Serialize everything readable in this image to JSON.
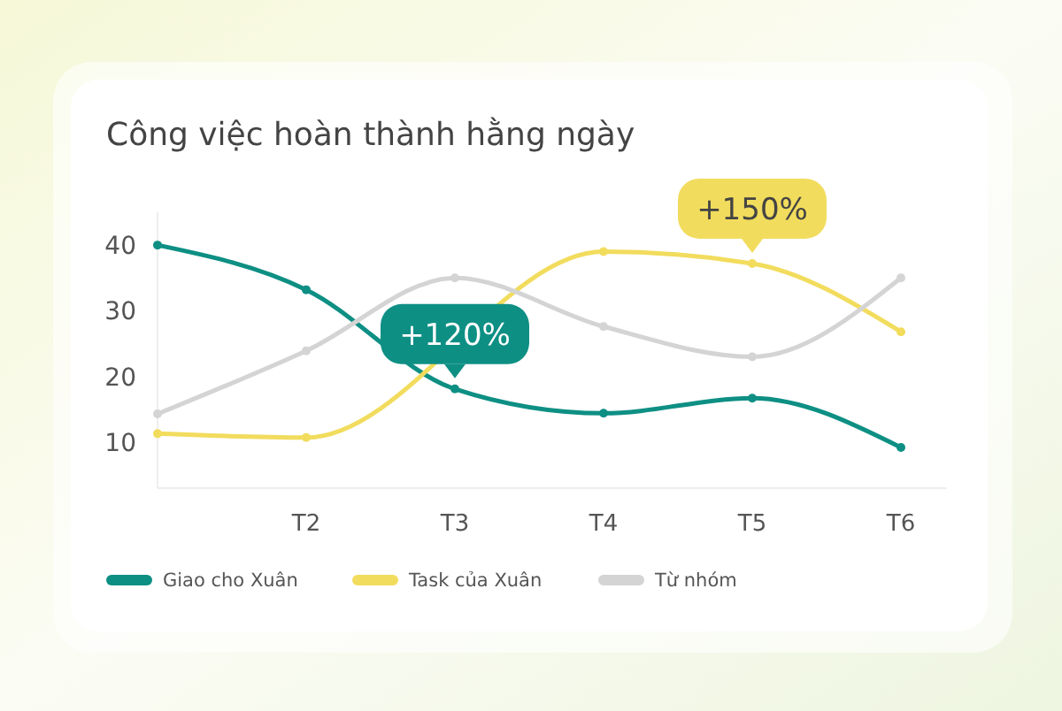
{
  "chart_data": {
    "type": "line",
    "title": "Công việc hoàn thành hằng ngày",
    "categories": [
      null,
      "T2",
      "T3",
      "T4",
      "T5",
      "T6"
    ],
    "series": [
      {
        "name": "Giao cho Xuân",
        "color": "#0e8f84",
        "values": [
          40,
          33.2,
          18.1,
          14.4,
          16.7,
          9.2
        ]
      },
      {
        "name": "Task của Xuân",
        "color": "#f2dc5d",
        "values": [
          11.3,
          10.7,
          null,
          39,
          37.2,
          26.8
        ]
      },
      {
        "name": "Từ nhóm",
        "color": "#d4d4d4",
        "values": [
          14.3,
          23.9,
          35,
          27.6,
          23,
          35
        ]
      }
    ],
    "ylim": [
      3,
      45
    ],
    "yticks": [
      10,
      20,
      30,
      40
    ],
    "annotations": [
      {
        "text": "+120%",
        "x": "T3",
        "y": 18.1
      },
      {
        "text": "+150%",
        "x": "T5",
        "y": 37.2
      }
    ],
    "legend": "bottom",
    "marker": "circle",
    "line_style": "solid",
    "grid": false
  }
}
